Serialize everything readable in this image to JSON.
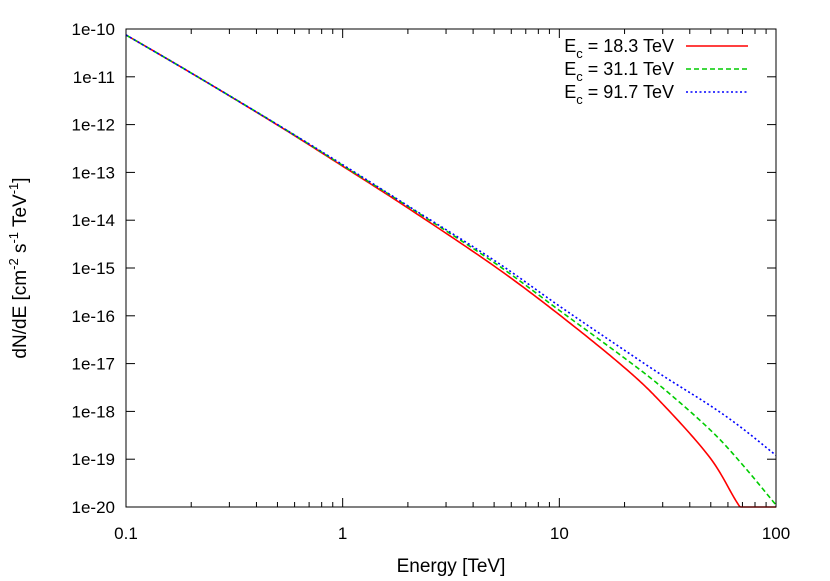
{
  "chart_data": {
    "type": "line",
    "title": "",
    "xlabel": "Energy [TeV]",
    "ylabel": {
      "main": "dN/dE [cm",
      "exp1": "-2",
      "unit2": " s",
      "exp2": "-1",
      "unit3": " TeV",
      "exp3": "-1",
      "close": "]"
    },
    "xscale": "log",
    "yscale": "log",
    "xlim": [
      0.1,
      100
    ],
    "ylim": [
      1e-20,
      1e-10
    ],
    "grid": false,
    "legend_position": "top-right",
    "x_ticks": [
      {
        "value": 0.1,
        "label": "0.1"
      },
      {
        "value": 1,
        "label": "1"
      },
      {
        "value": 10,
        "label": "10"
      },
      {
        "value": 100,
        "label": "100"
      }
    ],
    "y_ticks": [
      {
        "value": 1e-20,
        "label": "1e-20"
      },
      {
        "value": 1e-19,
        "label": "1e-19"
      },
      {
        "value": 1e-18,
        "label": "1e-18"
      },
      {
        "value": 1e-17,
        "label": "1e-17"
      },
      {
        "value": 1e-16,
        "label": "1e-16"
      },
      {
        "value": 1e-15,
        "label": "1e-15"
      },
      {
        "value": 1e-14,
        "label": "1e-14"
      },
      {
        "value": 1e-13,
        "label": "1e-13"
      },
      {
        "value": 1e-12,
        "label": "1e-12"
      },
      {
        "value": 1e-11,
        "label": "1e-11"
      },
      {
        "value": 1e-10,
        "label": "1e-10"
      }
    ],
    "x": [
      0.1,
      0.2,
      0.5,
      1,
      2,
      5,
      10,
      20,
      30,
      50,
      70,
      100
    ],
    "series": [
      {
        "label_base": "E",
        "label_sub": "c",
        "label_rest": " = 18.3 TeV",
        "color": "#ff0000",
        "dash": "solid",
        "values": [
          7.5e-11,
          1.2e-11,
          9.8e-13,
          1.35e-13,
          1.8e-14,
          1.1e-15,
          1.05e-16,
          8.2e-18,
          1.42e-18,
          1.02e-19,
          8.5e-21,
          1.7e-21
        ]
      },
      {
        "label_base": "E",
        "label_sub": "c",
        "label_rest": " = 31.1 TeV",
        "color": "#00cc00",
        "dash": "dashed",
        "values": [
          7.5e-11,
          1.2e-11,
          1e-12,
          1.4e-13,
          1.95e-14,
          1.3e-15,
          1.3e-16,
          1.3e-17,
          3.1e-18,
          4e-19,
          7.7e-20,
          1.1e-20
        ]
      },
      {
        "label_base": "E",
        "label_sub": "c",
        "label_rest": " = 91.7 TeV",
        "color": "#0000ff",
        "dash": "dotted",
        "values": [
          7.5e-11,
          1.2e-11,
          1e-12,
          1.45e-13,
          2e-14,
          1.45e-15,
          1.6e-16,
          1.9e-17,
          5.6e-18,
          1.3e-18,
          4.4e-19,
          1.2e-19
        ]
      }
    ]
  }
}
